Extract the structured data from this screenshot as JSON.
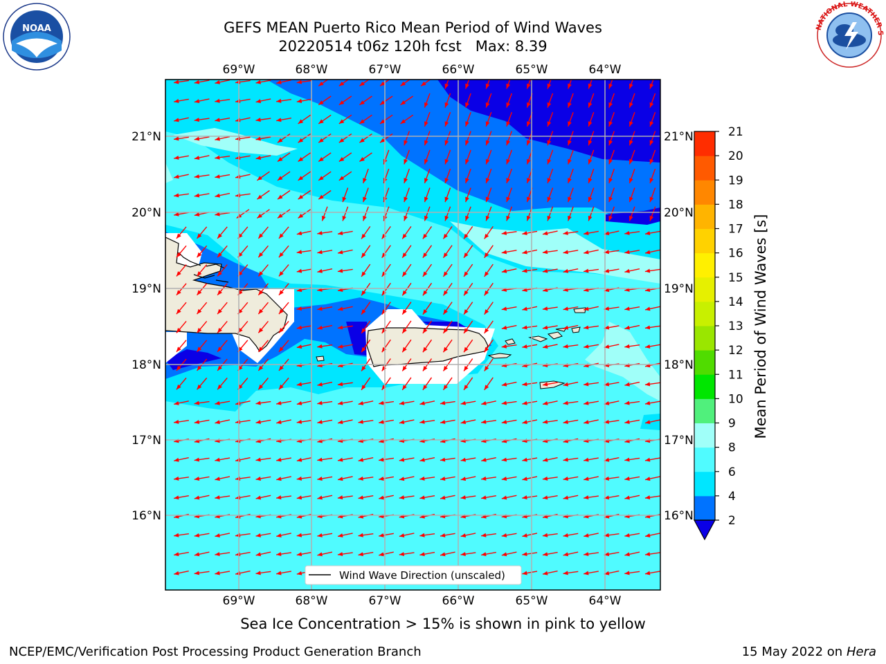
{
  "header": {
    "title_line1": "GEFS MEAN Puerto Rico Mean Period of Wind Waves",
    "title_line2": "20220514 t06z 120h fcst   Max: 8.39",
    "left_logo": {
      "name": "noaa-logo",
      "text": "NOAA"
    },
    "right_logo": {
      "name": "national-weather-service-logo",
      "text": "NATIONAL WEATHER SERVICE"
    }
  },
  "map": {
    "lon_labels": [
      "69°W",
      "68°W",
      "67°W",
      "66°W",
      "65°W",
      "64°W"
    ],
    "lat_labels": [
      "21°N",
      "20°N",
      "19°N",
      "18°N",
      "17°N",
      "16°N"
    ],
    "arrow_color": "#ff0000",
    "land_color": "#efecdc",
    "legend_label": "Wind Wave Direction (unscaled)"
  },
  "colorbar": {
    "label": "Mean Period of Wind Waves [s]",
    "ticks": [
      "2",
      "4",
      "6",
      "8",
      "9",
      "10",
      "11",
      "12",
      "13",
      "14",
      "15",
      "16",
      "17",
      "18",
      "19",
      "20",
      "21"
    ],
    "colors": [
      "#0a00e6",
      "#0073ff",
      "#00e6ff",
      "#50fbff",
      "#a0fff9",
      "#50f07c",
      "#00e600",
      "#50dc00",
      "#9ae600",
      "#c8f000",
      "#e6f000",
      "#fff000",
      "#ffd200",
      "#ffb400",
      "#ff8700",
      "#ff5a00",
      "#ff2d00",
      "#ff0000"
    ]
  },
  "caption": "Sea Ice Concentration > 15% is shown in pink to yellow",
  "footer": {
    "left": "NCEP/EMC/Verification Post Processing Product Generation Branch",
    "right_date": "15 May 2022 on",
    "right_host": "Hera"
  }
}
